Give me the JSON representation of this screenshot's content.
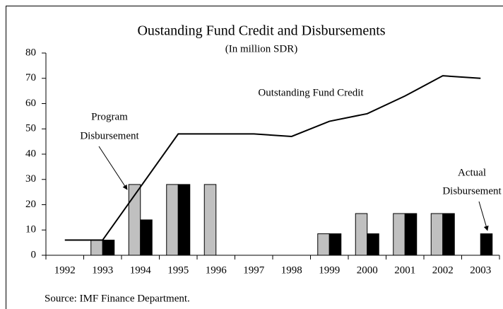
{
  "chart_data": {
    "type": "bar",
    "title": "Oustanding Fund Credit and Disbursements",
    "subtitle": "(In million SDR)",
    "categories": [
      "1992",
      "1993",
      "1994",
      "1995",
      "1996",
      "1997",
      "1998",
      "1999",
      "2000",
      "2001",
      "2002",
      "2003"
    ],
    "series": [
      {
        "type": "bar",
        "color": "#c0c0c0",
        "values": [
          null,
          6,
          28,
          28,
          28,
          null,
          null,
          8.5,
          16.5,
          16.5,
          16.5,
          null
        ]
      },
      {
        "type": "bar",
        "color": "#000000",
        "values": [
          null,
          6,
          14,
          28,
          null,
          null,
          null,
          8.5,
          8.5,
          16.5,
          16.5,
          8.5
        ]
      },
      {
        "type": "line",
        "color": "#000000",
        "values": [
          6,
          6,
          27,
          48,
          48,
          48,
          47,
          53,
          56,
          63,
          71,
          70
        ]
      }
    ],
    "ylim": [
      0,
      80
    ],
    "yticks": [
      0,
      10,
      20,
      30,
      40,
      50,
      60,
      70,
      80
    ],
    "grid": false,
    "annotations": [
      {
        "lines": [
          "Outstanding Fund Credit"
        ]
      },
      {
        "lines": [
          "Program",
          "Disbursement"
        ]
      },
      {
        "lines": [
          "Actual",
          "Disbursement"
        ]
      }
    ],
    "source": "Source: IMF Finance Department."
  }
}
